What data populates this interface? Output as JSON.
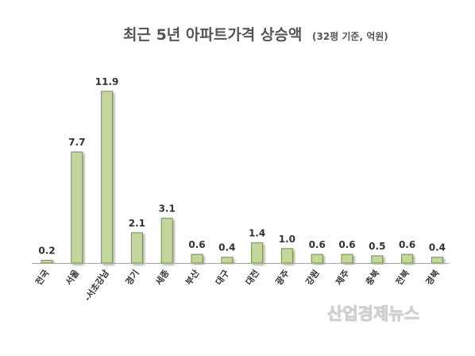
{
  "chart_data": {
    "type": "bar",
    "title": "최근 5년 아파트가격 상승액",
    "subtitle": "(32평 기준, 억원)",
    "categories": [
      "전국",
      "서울",
      "-서초강남",
      "경기",
      "세종",
      "부산",
      "대구",
      "대전",
      "광주",
      "강원",
      "제주",
      "충북",
      "전북",
      "경북"
    ],
    "values": [
      0.2,
      7.7,
      11.9,
      2.1,
      3.1,
      0.6,
      0.4,
      1.4,
      1.0,
      0.6,
      0.6,
      0.5,
      0.6,
      0.4
    ],
    "value_labels": [
      "0.2",
      "7.7",
      "11.9",
      "2.1",
      "3.1",
      "0.6",
      "0.4",
      "1.4",
      "1.0",
      "0.6",
      "0.6",
      "0.5",
      "0.6",
      "0.4"
    ],
    "xlabel": "",
    "ylabel": "",
    "ylim": [
      0,
      12.5
    ],
    "grid": false,
    "legend": "none",
    "bar_color": "#c3d69b",
    "bar_edge_color": "#76923c",
    "axis_color": "#a6a6a6"
  },
  "watermark": "산업경제뉴스"
}
